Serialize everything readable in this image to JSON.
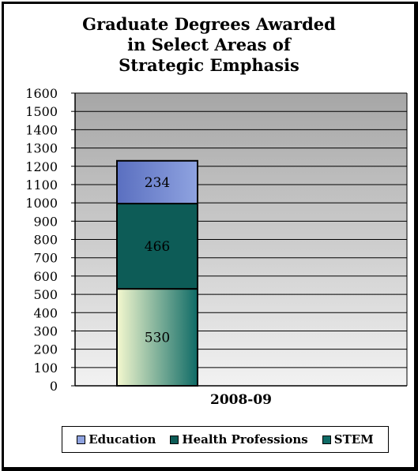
{
  "chart_data": {
    "type": "bar",
    "stacked": true,
    "title_lines": [
      "Graduate Degrees Awarded",
      "in Select Areas of",
      "Strategic Emphasis"
    ],
    "categories": [
      "2008-09"
    ],
    "series": [
      {
        "name": "STEM",
        "values": [
          530
        ],
        "color": "#0f6b66"
      },
      {
        "name": "Health Professions",
        "values": [
          466
        ],
        "color": "#0d5c57"
      },
      {
        "name": "Education",
        "values": [
          234
        ],
        "color": "#8fa3e0"
      }
    ],
    "ylim": [
      0,
      1600
    ],
    "yticks": [
      0,
      100,
      200,
      300,
      400,
      500,
      600,
      700,
      800,
      900,
      1000,
      1100,
      1200,
      1300,
      1400,
      1500,
      1600
    ],
    "grid": true,
    "legend_position": "bottom",
    "legend_order": [
      "Education",
      "Health Professions",
      "STEM"
    ]
  },
  "colors": {
    "plot_top": "#a6a6a6",
    "plot_bottom": "#f2f2f2",
    "stem_light": "#f4f8cf",
    "stem_dark": "#0f6b66",
    "health": "#0d5c57",
    "education": "#8fa3e0",
    "education_dark": "#5a6fc0"
  }
}
